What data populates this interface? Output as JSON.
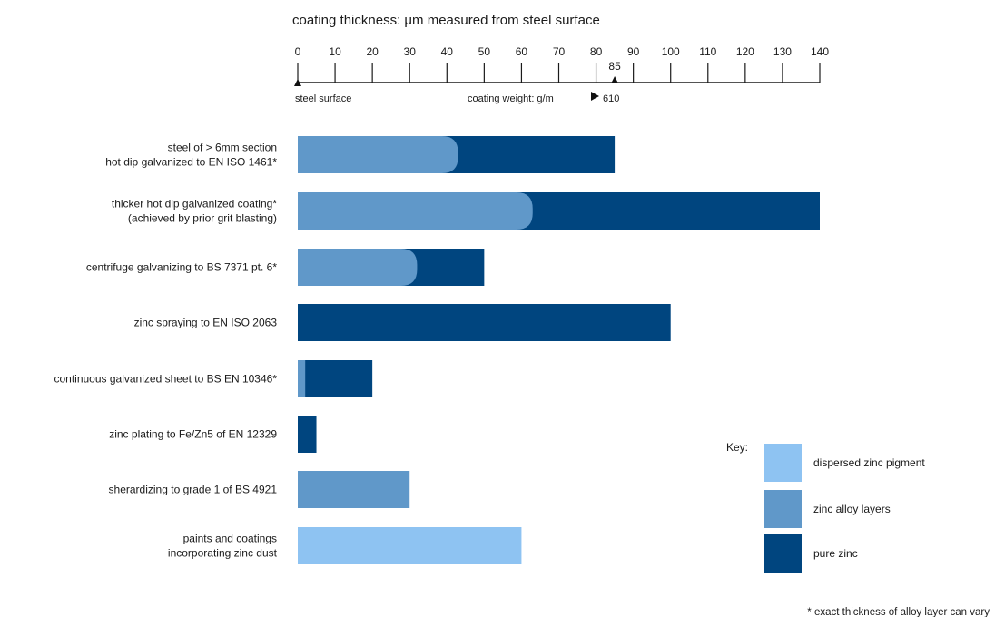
{
  "chart_data": {
    "type": "bar",
    "orientation": "horizontal",
    "stacked": true,
    "axis_title": "coating thickness: μm measured from steel surface",
    "x_ticks": [
      0,
      10,
      20,
      30,
      40,
      50,
      60,
      70,
      80,
      90,
      100,
      110,
      120,
      130,
      140
    ],
    "xlim": [
      0,
      140
    ],
    "axis_markers": [
      {
        "value": 0,
        "label": "steel surface"
      },
      {
        "value": 85,
        "label": "85"
      }
    ],
    "coating_weight_label": "coating weight: g/m",
    "coating_weight_value": "610",
    "categories": [
      [
        "steel of > 6mm section",
        "hot dip galvanized to EN ISO 1461*"
      ],
      [
        "thicker hot dip galvanized coating*",
        "(achieved by prior grit blasting)"
      ],
      [
        "centrifuge galvanizing to BS 7371 pt. 6*"
      ],
      [
        "zinc spraying to EN ISO 2063"
      ],
      [
        "continuous galvanized sheet to BS EN 10346*"
      ],
      [
        "zinc plating to Fe/Zn5 of EN 12329"
      ],
      [
        "sherardizing to grade 1 of BS 4921"
      ],
      [
        "paints and coatings",
        "incorporating zinc dust"
      ]
    ],
    "series": [
      {
        "name": "dispersed zinc pigment",
        "color": "#8ec3f2",
        "values": [
          0,
          0,
          0,
          0,
          0,
          0,
          0,
          60
        ]
      },
      {
        "name": "zinc alloy layers",
        "color": "#6098c9",
        "values": [
          43,
          63,
          32,
          0,
          2,
          0,
          30,
          0
        ]
      },
      {
        "name": "pure zinc",
        "color": "#00457f",
        "values": [
          42,
          77,
          18,
          100,
          18,
          5,
          0,
          0
        ]
      }
    ],
    "key_title": "Key:",
    "footnote": "* exact thickness of alloy layer can vary"
  }
}
